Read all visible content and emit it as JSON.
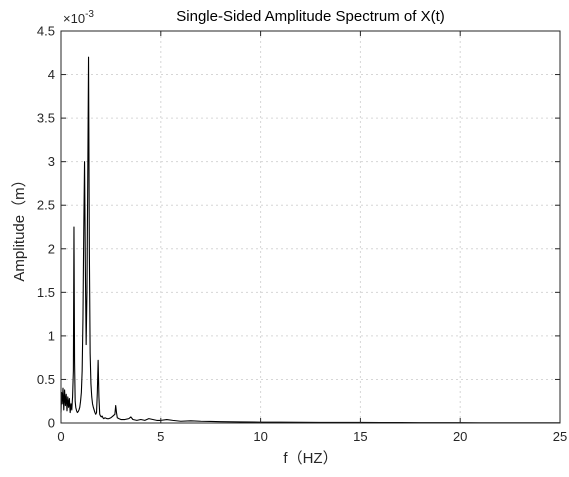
{
  "chart_data": {
    "type": "line",
    "title": "Single-Sided Amplitude Spectrum of X(t)",
    "xlabel": "f（HZ）",
    "ylabel": "Amplitude（m）",
    "y_exponent_label": "×10",
    "y_exponent_power": "-3",
    "xlim": [
      0,
      25
    ],
    "ylim": [
      0,
      4.5
    ],
    "xticks": [
      "0",
      "5",
      "10",
      "15",
      "20",
      "25"
    ],
    "yticks": [
      "0",
      "0.5",
      "1",
      "1.5",
      "2",
      "2.5",
      "3",
      "3.5",
      "4",
      "4.5"
    ],
    "grid": true,
    "series_color": "#000000",
    "series": [
      {
        "x": [
          0,
          0.03,
          0.06,
          0.1,
          0.14,
          0.18,
          0.22,
          0.26,
          0.3,
          0.34,
          0.38,
          0.42,
          0.46,
          0.5,
          0.54,
          0.58,
          0.62,
          0.65,
          0.68,
          0.71,
          0.74,
          0.78,
          0.82,
          0.86,
          0.9,
          0.94,
          0.98,
          1.02,
          1.06,
          1.1,
          1.14,
          1.18,
          1.22,
          1.26,
          1.3,
          1.34,
          1.38,
          1.42,
          1.46,
          1.5,
          1.54,
          1.58,
          1.62,
          1.66,
          1.7,
          1.74,
          1.78,
          1.82,
          1.86,
          1.9,
          1.94,
          1.98,
          2.02,
          2.06,
          2.1,
          2.14,
          2.2,
          2.3,
          2.4,
          2.5,
          2.6,
          2.7,
          2.74,
          2.78,
          2.82,
          2.9,
          3.0,
          3.2,
          3.4,
          3.5,
          3.6,
          3.8,
          4.0,
          4.2,
          4.4,
          4.6,
          4.8,
          5.0,
          5.3,
          5.6,
          6.0,
          6.5,
          7.0,
          7.5,
          8.0,
          9.0,
          10.0,
          11.0,
          12.0,
          13.0,
          14.0,
          15.0,
          16.0,
          17.0,
          18.0,
          19.0,
          20.0,
          21.0,
          22.0,
          23.0,
          24.0,
          25.0
        ],
        "values": [
          0.12,
          0.35,
          0.22,
          0.4,
          0.15,
          0.38,
          0.2,
          0.33,
          0.14,
          0.3,
          0.18,
          0.28,
          0.12,
          0.22,
          0.15,
          0.3,
          0.6,
          2.25,
          0.7,
          0.25,
          0.18,
          0.14,
          0.12,
          0.13,
          0.15,
          0.18,
          0.25,
          0.35,
          0.6,
          1.2,
          2.2,
          3.0,
          1.8,
          0.9,
          1.5,
          2.8,
          4.2,
          2.0,
          0.8,
          0.45,
          0.3,
          0.22,
          0.18,
          0.15,
          0.12,
          0.1,
          0.12,
          0.35,
          0.72,
          0.3,
          0.1,
          0.08,
          0.07,
          0.08,
          0.06,
          0.05,
          0.06,
          0.05,
          0.05,
          0.06,
          0.08,
          0.1,
          0.2,
          0.12,
          0.06,
          0.05,
          0.04,
          0.04,
          0.05,
          0.07,
          0.04,
          0.03,
          0.04,
          0.03,
          0.05,
          0.04,
          0.03,
          0.03,
          0.04,
          0.03,
          0.02,
          0.025,
          0.02,
          0.018,
          0.015,
          0.012,
          0.01,
          0.009,
          0.008,
          0.007,
          0.006,
          0.006,
          0.005,
          0.005,
          0.004,
          0.004,
          0.004,
          0.003,
          0.003,
          0.003,
          0.003,
          0.002
        ]
      }
    ]
  }
}
